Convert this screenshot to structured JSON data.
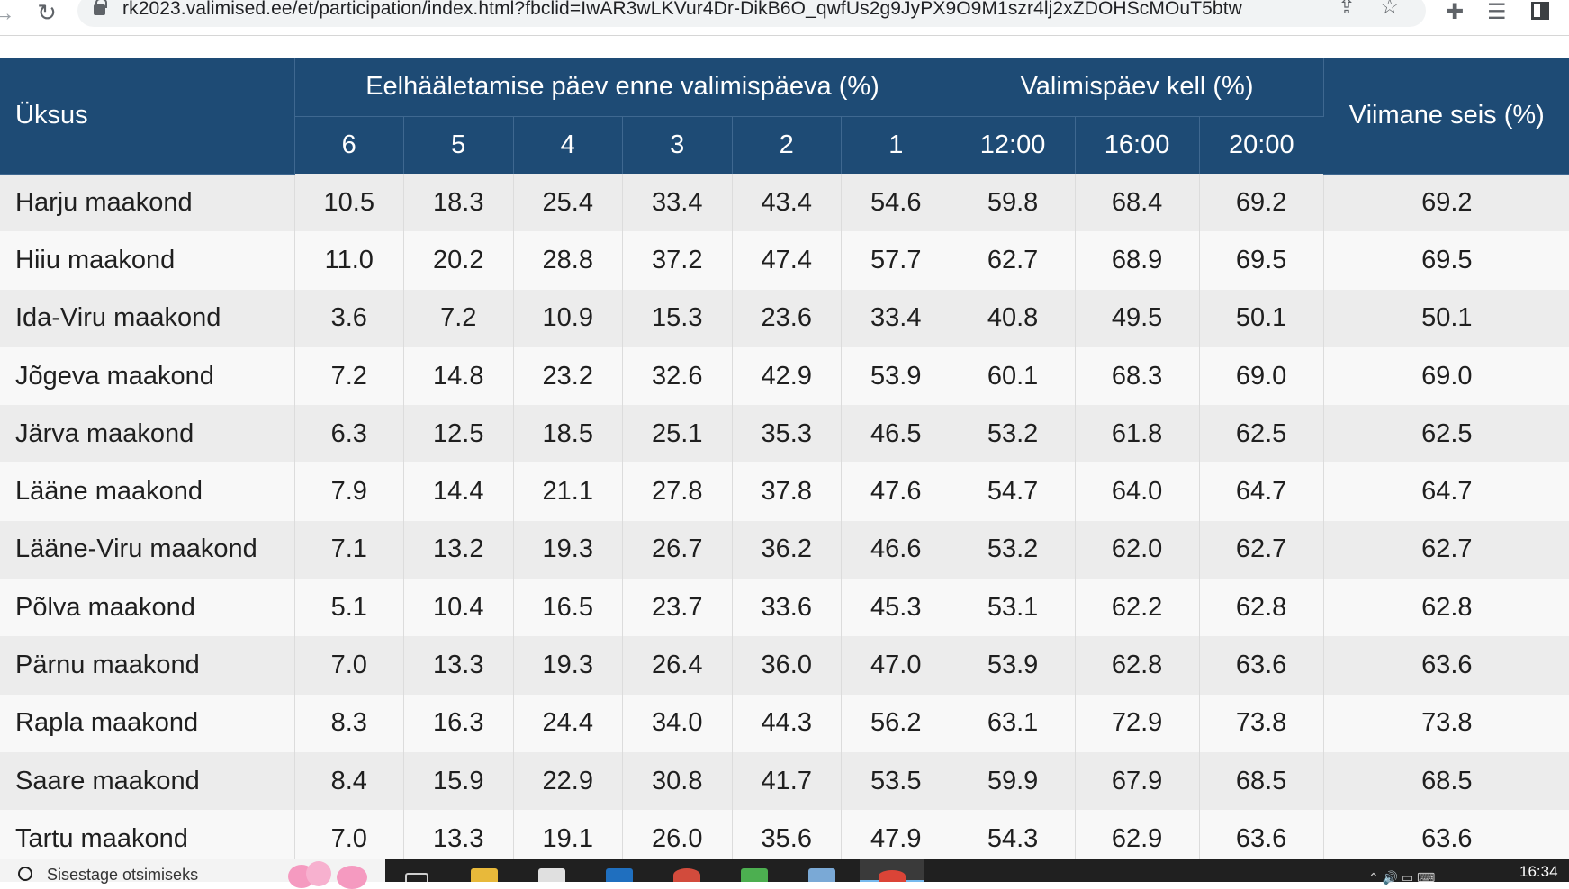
{
  "browser": {
    "url": "rk2023.valimised.ee/et/participation/index.html?fbclid=IwAR3wLKVur4Dr-DikB6O_qwfUs2g9JyPX9O9M1szr4lj2xZDOHScMOuT5btw"
  },
  "table": {
    "header": {
      "unit": "Üksus",
      "early_group": "Eelhääletamise päev enne valimispäeva (%)",
      "eday_group": "Valimispäev kell (%)",
      "latest": "Viimane seis (%)",
      "early_days": [
        "6",
        "5",
        "4",
        "3",
        "2",
        "1"
      ],
      "eday_times": [
        "12:00",
        "16:00",
        "20:00"
      ]
    },
    "rows": [
      {
        "name": "Harju maakond",
        "values": [
          "10.5",
          "18.3",
          "25.4",
          "33.4",
          "43.4",
          "54.6",
          "59.8",
          "68.4",
          "69.2",
          "69.2"
        ]
      },
      {
        "name": "Hiiu maakond",
        "values": [
          "11.0",
          "20.2",
          "28.8",
          "37.2",
          "47.4",
          "57.7",
          "62.7",
          "68.9",
          "69.5",
          "69.5"
        ]
      },
      {
        "name": "Ida-Viru maakond",
        "values": [
          "3.6",
          "7.2",
          "10.9",
          "15.3",
          "23.6",
          "33.4",
          "40.8",
          "49.5",
          "50.1",
          "50.1"
        ]
      },
      {
        "name": "Jõgeva maakond",
        "values": [
          "7.2",
          "14.8",
          "23.2",
          "32.6",
          "42.9",
          "53.9",
          "60.1",
          "68.3",
          "69.0",
          "69.0"
        ]
      },
      {
        "name": "Järva maakond",
        "values": [
          "6.3",
          "12.5",
          "18.5",
          "25.1",
          "35.3",
          "46.5",
          "53.2",
          "61.8",
          "62.5",
          "62.5"
        ]
      },
      {
        "name": "Lääne maakond",
        "values": [
          "7.9",
          "14.4",
          "21.1",
          "27.8",
          "37.8",
          "47.6",
          "54.7",
          "64.0",
          "64.7",
          "64.7"
        ]
      },
      {
        "name": "Lääne-Viru maakond",
        "values": [
          "7.1",
          "13.2",
          "19.3",
          "26.7",
          "36.2",
          "46.6",
          "53.2",
          "62.0",
          "62.7",
          "62.7"
        ]
      },
      {
        "name": "Põlva maakond",
        "values": [
          "5.1",
          "10.4",
          "16.5",
          "23.7",
          "33.6",
          "45.3",
          "53.1",
          "62.2",
          "62.8",
          "62.8"
        ]
      },
      {
        "name": "Pärnu maakond",
        "values": [
          "7.0",
          "13.3",
          "19.3",
          "26.4",
          "36.0",
          "47.0",
          "53.9",
          "62.8",
          "63.6",
          "63.6"
        ]
      },
      {
        "name": "Rapla maakond",
        "values": [
          "8.3",
          "16.3",
          "24.4",
          "34.0",
          "44.3",
          "56.2",
          "63.1",
          "72.9",
          "73.8",
          "73.8"
        ]
      },
      {
        "name": "Saare maakond",
        "values": [
          "8.4",
          "15.9",
          "22.9",
          "30.8",
          "41.7",
          "53.5",
          "59.9",
          "67.9",
          "68.5",
          "68.5"
        ]
      },
      {
        "name": "Tartu maakond",
        "values": [
          "7.0",
          "13.3",
          "19.1",
          "26.0",
          "35.6",
          "47.9",
          "54.3",
          "62.9",
          "63.6",
          "63.6"
        ]
      }
    ]
  },
  "taskbar": {
    "search_placeholder": "Sisestage otsimiseks",
    "time": "16:34"
  }
}
